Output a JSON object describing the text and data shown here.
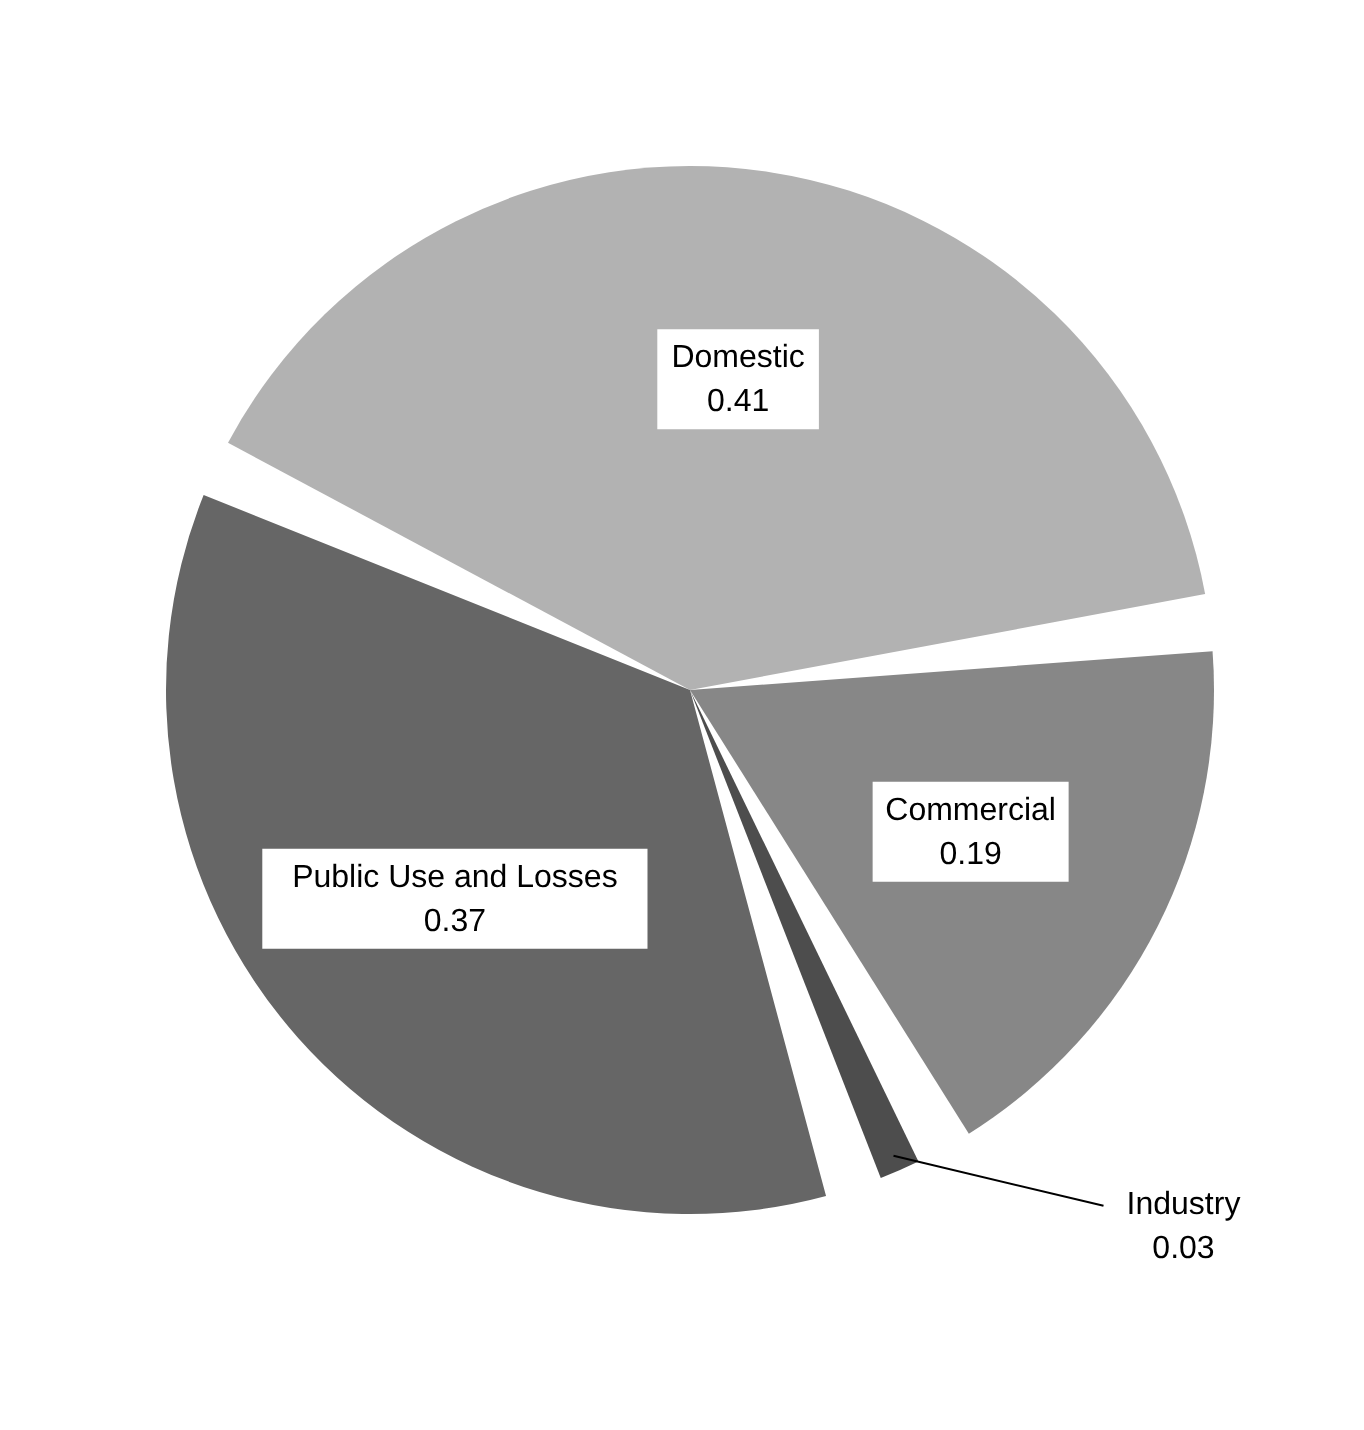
{
  "chart_data": {
    "type": "pie",
    "categories": [
      "Domestic",
      "Commercial",
      "Industry",
      "Public Use and Losses"
    ],
    "values": [
      0.41,
      0.19,
      0.03,
      0.37
    ],
    "colors": [
      "#b2b2b2",
      "#878787",
      "#4d4d4d",
      "#666666"
    ],
    "data_labels": true
  }
}
